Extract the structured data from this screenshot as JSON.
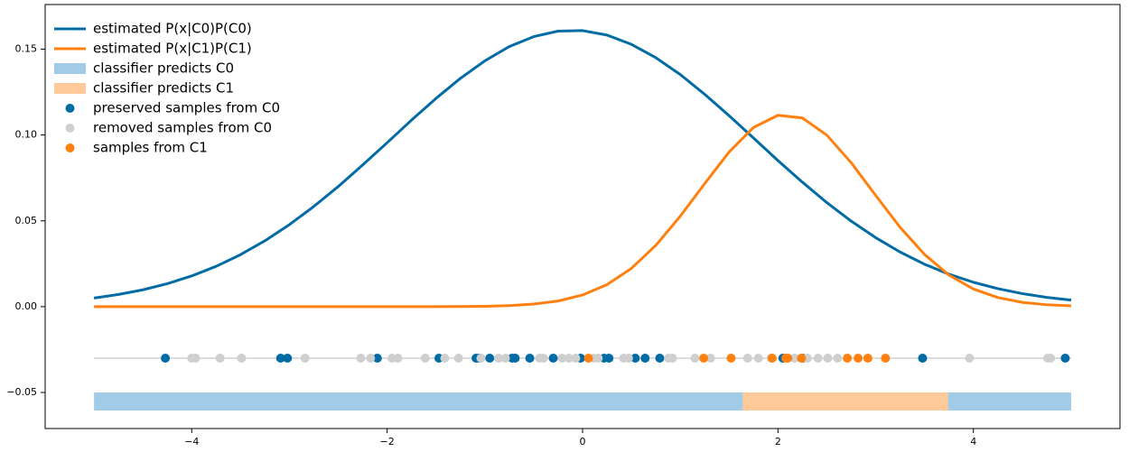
{
  "chart_data": {
    "type": "line",
    "legend": "upper left",
    "xlim": [
      -5.5,
      5.5
    ],
    "ylim": [
      -0.071,
      0.176
    ],
    "xticks": [
      {
        "value": -4,
        "label": "−4"
      },
      {
        "value": -2,
        "label": "−2"
      },
      0,
      2,
      4
    ],
    "yticks": [
      {
        "value": -0.05,
        "label": "−0.05"
      },
      {
        "value": 0,
        "label": "0.00"
      },
      0.05,
      {
        "value": 0.1,
        "label": "0.10"
      },
      0.15
    ],
    "x": [
      -5,
      -4.75,
      -4.5,
      -4.25,
      -4,
      -3.75,
      -3.5,
      -3.25,
      -3,
      -2.75,
      -2.5,
      -2.25,
      -2,
      -1.75,
      -1.5,
      -1.25,
      -1,
      -0.75,
      -0.5,
      -0.25,
      0,
      0.25,
      0.5,
      0.75,
      1,
      1.25,
      1.5,
      1.75,
      2,
      2.25,
      2.5,
      2.75,
      3,
      3.25,
      3.5,
      3.75,
      4,
      4.25,
      4.5,
      4.75,
      5
    ],
    "series": [
      {
        "kind": "line",
        "color": "#c8c8c8",
        "width": 1.2,
        "x": [
          -5,
          5
        ],
        "values": [
          -0.03,
          -0.03
        ]
      },
      {
        "name": "estimated P(x|C0)P(C0)",
        "kind": "line",
        "color": "#006ba4",
        "width": 3,
        "values": [
          0.005,
          0.0071,
          0.0098,
          0.0134,
          0.0179,
          0.0235,
          0.0303,
          0.0384,
          0.0478,
          0.0584,
          0.07,
          0.0826,
          0.0955,
          0.1087,
          0.1213,
          0.133,
          0.1432,
          0.1515,
          0.1573,
          0.1605,
          0.1608,
          0.1582,
          0.1528,
          0.145,
          0.1352,
          0.1237,
          0.1112,
          0.0982,
          0.0851,
          0.0725,
          0.0606,
          0.0498,
          0.0402,
          0.0318,
          0.0247,
          0.0189,
          0.0142,
          0.0105,
          0.0076,
          0.0054,
          0.0038
        ]
      },
      {
        "name": "estimated P(x|C1)P(C1)",
        "kind": "line",
        "color": "#ff800e",
        "width": 3,
        "values": [
          0,
          0,
          0,
          0,
          0,
          0,
          0,
          0,
          0,
          0,
          0,
          0,
          0,
          0,
          0,
          0.0001,
          0.0002,
          0.0006,
          0.0015,
          0.0033,
          0.0068,
          0.0128,
          0.0223,
          0.0357,
          0.0527,
          0.0717,
          0.0901,
          0.1044,
          0.1115,
          0.1099,
          0.0999,
          0.0838,
          0.0648,
          0.0462,
          0.0304,
          0.0184,
          0.0103,
          0.0053,
          0.0025,
          0.0011,
          0.0005
        ]
      },
      {
        "name": "classifier predicts C0",
        "kind": "span",
        "color": "#a2cbe8",
        "y_range": [
          -0.0605,
          -0.05
        ],
        "spans": [
          [
            -5,
            1.64
          ],
          [
            3.74,
            5
          ]
        ]
      },
      {
        "name": "classifier predicts C1",
        "kind": "span",
        "color": "#ffc999",
        "y_range": [
          -0.0605,
          -0.05
        ],
        "spans": [
          [
            1.64,
            3.74
          ]
        ]
      },
      {
        "name": "preserved samples from C0",
        "kind": "scatter",
        "color": "#006ba4",
        "x": [
          -4.27,
          -3.09,
          -3.02,
          -2.1,
          -1.47,
          -1.09,
          -1.06,
          -0.95,
          -0.72,
          -0.69,
          -0.54,
          -0.3,
          -0.02,
          0.22,
          0.27,
          0.54,
          0.64,
          0.79,
          2.05,
          2.25,
          3.48,
          4.94
        ],
        "values": [
          -0.03,
          -0.03,
          -0.03,
          -0.03,
          -0.03,
          -0.03,
          -0.03,
          -0.03,
          -0.03,
          -0.03,
          -0.03,
          -0.03,
          -0.03,
          -0.03,
          -0.03,
          -0.03,
          -0.03,
          -0.03,
          -0.03,
          -0.03,
          -0.03,
          -0.03
        ]
      },
      {
        "name": "removed samples from C0",
        "kind": "scatter",
        "color": "#cfcfcf",
        "x": [
          -4.0,
          -3.96,
          -3.71,
          -3.49,
          -2.84,
          -2.27,
          -2.17,
          -1.95,
          -1.89,
          -1.61,
          -1.41,
          -1.27,
          -1.04,
          -0.86,
          -0.79,
          -0.44,
          -0.4,
          -0.21,
          -0.14,
          -0.07,
          0.11,
          0.16,
          0.42,
          0.47,
          0.88,
          0.92,
          1.15,
          1.31,
          1.69,
          1.8,
          1.93,
          2.17,
          2.3,
          2.41,
          2.51,
          2.61,
          3.96,
          4.76,
          4.79
        ],
        "values": [
          -0.03,
          -0.03,
          -0.03,
          -0.03,
          -0.03,
          -0.03,
          -0.03,
          -0.03,
          -0.03,
          -0.03,
          -0.03,
          -0.03,
          -0.03,
          -0.03,
          -0.03,
          -0.03,
          -0.03,
          -0.03,
          -0.03,
          -0.03,
          -0.03,
          -0.03,
          -0.03,
          -0.03,
          -0.03,
          -0.03,
          -0.03,
          -0.03,
          -0.03,
          -0.03,
          -0.03,
          -0.03,
          -0.03,
          -0.03,
          -0.03,
          -0.03,
          -0.03,
          -0.03,
          -0.03
        ]
      },
      {
        "name": "samples from C1",
        "kind": "scatter",
        "color": "#ff800e",
        "x": [
          0.06,
          1.24,
          1.52,
          1.94,
          2.08,
          2.1,
          2.24,
          2.71,
          2.82,
          2.92,
          3.1
        ],
        "values": [
          -0.03,
          -0.03,
          -0.03,
          -0.03,
          -0.03,
          -0.03,
          -0.03,
          -0.03,
          -0.03,
          -0.03,
          -0.03
        ]
      }
    ]
  }
}
